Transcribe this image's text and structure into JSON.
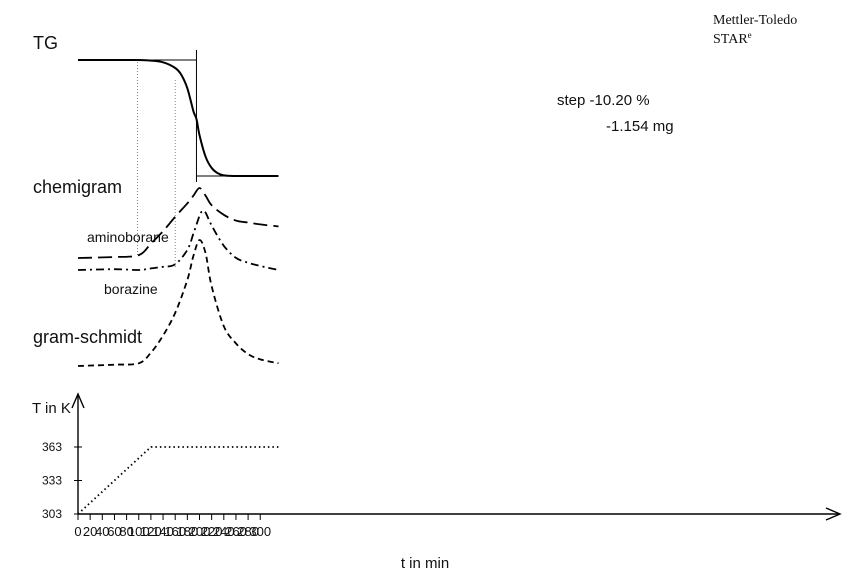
{
  "brand": {
    "line1": "Mettler-Toledo",
    "line2": "STAR",
    "line2_sup": "e"
  },
  "chart_data": {
    "type": "line",
    "xlabel": "t in min",
    "x_ticks": [
      0,
      20,
      40,
      60,
      80,
      100,
      120,
      140,
      160,
      180,
      200,
      220,
      240,
      260,
      280,
      300
    ],
    "xlim": [
      0,
      330
    ],
    "panels": [
      {
        "name": "TG",
        "label": "TG",
        "annotation": {
          "line1": "step -10.20 %",
          "line2": "-1.154 mg"
        },
        "series": [
          {
            "name": "TG",
            "style": "solid",
            "x": [
              0,
              60,
              100,
              120,
              140,
              160,
              170,
              180,
              190,
              195,
              200,
              210,
              220,
              230,
              240,
              260,
              280,
              300,
              330
            ],
            "y": [
              100,
              100,
              100,
              99.95,
              99.8,
              99.3,
              98.7,
              97.5,
              95.5,
              94.8,
              93.4,
              91.5,
              90.5,
              90.05,
              89.85,
              89.8,
              89.8,
              89.8,
              89.8
            ]
          }
        ]
      },
      {
        "name": "chemigram",
        "label": "chemigram",
        "series": [
          {
            "name": "aminoborane",
            "label": "aminoborane",
            "style": "long-dash",
            "x": [
              0,
              60,
              100,
              120,
              140,
              160,
              180,
              190,
              200,
              210,
              220,
              240,
              260,
              280,
              300,
              330
            ],
            "y": [
              0.05,
              0.06,
              0.08,
              0.2,
              0.33,
              0.48,
              0.62,
              0.7,
              0.78,
              0.7,
              0.6,
              0.5,
              0.44,
              0.42,
              0.4,
              0.38
            ]
          },
          {
            "name": "borazine",
            "label": "borazine",
            "style": "dash-dot",
            "x": [
              0,
              60,
              100,
              120,
              140,
              160,
              180,
              190,
              200,
              205,
              210,
              220,
              240,
              260,
              280,
              300,
              330
            ],
            "y": [
              0.05,
              0.06,
              0.05,
              0.07,
              0.09,
              0.12,
              0.3,
              0.5,
              0.72,
              0.78,
              0.76,
              0.6,
              0.35,
              0.2,
              0.14,
              0.1,
              0.05
            ]
          }
        ]
      },
      {
        "name": "gram-schmidt",
        "label": "gram-schmidt",
        "series": [
          {
            "name": "gram-schmidt",
            "style": "short-dash",
            "x": [
              0,
              60,
              100,
              120,
              140,
              160,
              180,
              190,
              200,
              210,
              220,
              240,
              260,
              280,
              300,
              330
            ],
            "y": [
              0.05,
              0.06,
              0.07,
              0.15,
              0.28,
              0.45,
              0.7,
              0.88,
              1.0,
              0.9,
              0.65,
              0.35,
              0.22,
              0.14,
              0.1,
              0.07
            ]
          }
        ]
      },
      {
        "name": "temperature",
        "ylabel": "T in K",
        "y_ticks": [
          303,
          333,
          363
        ],
        "ylim": [
          303,
          393
        ],
        "series": [
          {
            "name": "T",
            "style": "dotted",
            "x": [
              0,
              120,
              330
            ],
            "y": [
              303,
              363,
              363
            ]
          }
        ]
      }
    ]
  }
}
